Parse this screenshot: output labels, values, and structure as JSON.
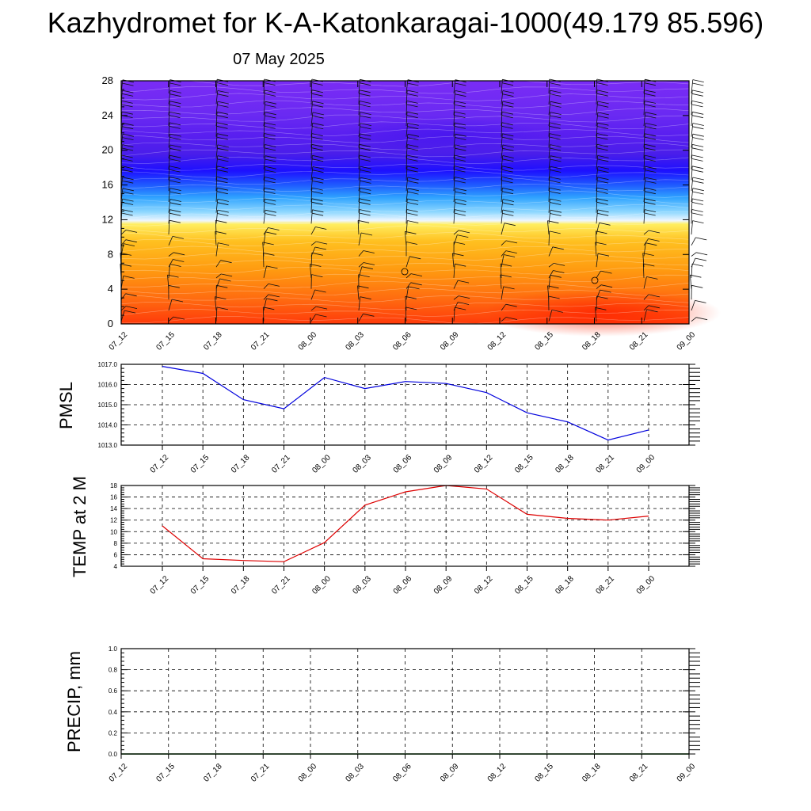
{
  "title": "Kazhydromet for K-A-Katonkaragai-1000(49.179 85.596)",
  "subtitle": "07 May 2025",
  "colors": {
    "pmsl_line": "#0000dd",
    "temp_line": "#dd0000",
    "precip_line": "#006400"
  },
  "chart_data": [
    {
      "name": "cross-section",
      "type": "heatmap",
      "title": "",
      "xlabel": "",
      "ylabel": "",
      "x": [
        "07_12",
        "07_15",
        "07_18",
        "07_21",
        "08_00",
        "08_03",
        "08_06",
        "08_09",
        "08_12",
        "08_15",
        "08_18",
        "08_21",
        "09_00"
      ],
      "ylim": [
        0,
        28
      ],
      "yticks": [
        0,
        4,
        8,
        12,
        16,
        20,
        24,
        28
      ],
      "note_colormap": "warm (orange/red) below level 12, blue/purple above"
    },
    {
      "name": "pmsl",
      "type": "line",
      "ylabel": "PMSL",
      "x": [
        "07_12",
        "07_15",
        "07_18",
        "07_21",
        "08_00",
        "08_03",
        "08_06",
        "08_09",
        "08_12",
        "08_15",
        "08_18",
        "08_21",
        "09_00"
      ],
      "values": [
        1016.9,
        1016.55,
        1015.25,
        1014.8,
        1016.35,
        1015.8,
        1016.15,
        1016.05,
        1015.6,
        1014.6,
        1014.15,
        1013.25,
        1013.75
      ],
      "ylim": [
        1013.0,
        1017.0
      ],
      "yticks": [
        "1013.0",
        "1014.0",
        "1015.0",
        "1016.0",
        "1017.0"
      ]
    },
    {
      "name": "temp2m",
      "type": "line",
      "ylabel": "TEMP at 2 M",
      "x": [
        "07_12",
        "07_15",
        "07_18",
        "07_21",
        "08_00",
        "08_03",
        "08_06",
        "08_09",
        "08_12",
        "08_15",
        "08_18",
        "08_21",
        "09_00"
      ],
      "values": [
        11.0,
        5.3,
        5.0,
        4.8,
        8.1,
        14.6,
        16.9,
        18.0,
        17.4,
        13.0,
        12.3,
        12.0,
        12.7
      ],
      "ylim": [
        4,
        18
      ],
      "yticks": [
        "4",
        "6",
        "8",
        "10",
        "12",
        "14",
        "16",
        "18"
      ]
    },
    {
      "name": "precip",
      "type": "line",
      "ylabel": "PRECIP, mm",
      "x": [
        "07_12",
        "07_15",
        "07_18",
        "07_21",
        "08_00",
        "08_03",
        "08_06",
        "08_09",
        "08_12",
        "08_15",
        "08_18",
        "08_21",
        "09_00"
      ],
      "values": [
        0,
        0,
        0,
        0,
        0,
        0,
        0,
        0,
        0,
        0,
        0,
        0,
        0
      ],
      "ylim": [
        0.0,
        1.0
      ],
      "yticks": [
        "0.0",
        "0.2",
        "0.4",
        "0.6",
        "0.8",
        "1.0"
      ]
    }
  ]
}
